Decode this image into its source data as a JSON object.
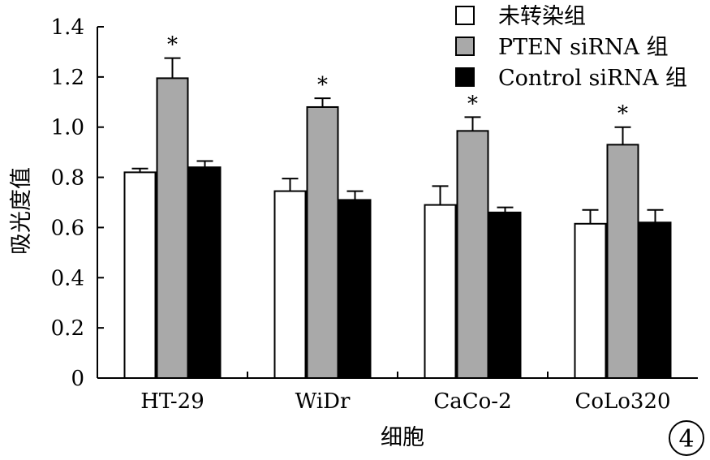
{
  "chart_data": {
    "type": "bar",
    "ylabel": "吸光度值",
    "xlabel": "细胞",
    "ylim": [
      0,
      1.4
    ],
    "yticks": [
      "0",
      "0.2",
      "0.4",
      "0.6",
      "0.8",
      "1.0",
      "1.2",
      "1.4"
    ],
    "grid": false,
    "legend_position": "top-right",
    "categories": [
      "HT-29",
      "WiDr",
      "CaCo-2",
      "CoLo320"
    ],
    "series": [
      {
        "name": "未转染组",
        "color": "#ffffff",
        "values": [
          0.82,
          0.745,
          0.69,
          0.615
        ],
        "errors": [
          0.015,
          0.05,
          0.075,
          0.055
        ]
      },
      {
        "name": "PTEN siRNA 组",
        "color": "#a9a9a9",
        "values": [
          1.195,
          1.08,
          0.985,
          0.93
        ],
        "errors": [
          0.08,
          0.035,
          0.055,
          0.07
        ]
      },
      {
        "name": "Control siRNA 组",
        "color": "#000000",
        "values": [
          0.84,
          0.71,
          0.66,
          0.62
        ],
        "errors": [
          0.025,
          0.035,
          0.02,
          0.05
        ]
      }
    ],
    "annotations": {
      "marker": "*",
      "series": "PTEN siRNA 组",
      "categories": [
        "HT-29",
        "WiDr",
        "CaCo-2",
        "CoLo320"
      ]
    },
    "panel_label": "4"
  }
}
